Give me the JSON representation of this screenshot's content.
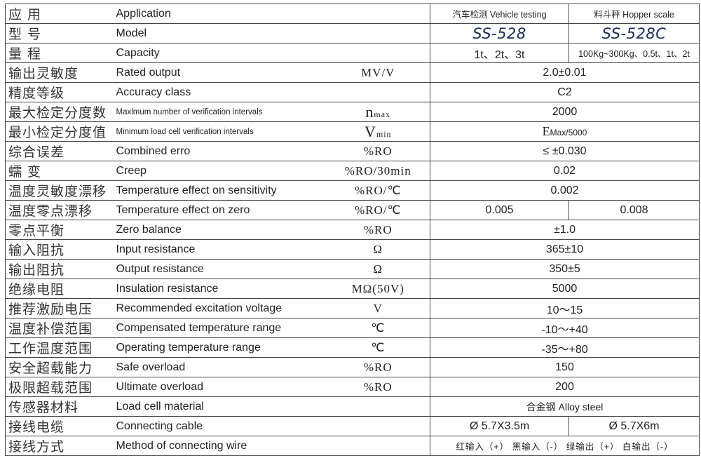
{
  "rows": [
    {
      "cn": "应  用",
      "en": "Application",
      "unit": "",
      "values": [
        "汽车检测 Vehicle testing",
        "料斗秤 Hopper scale"
      ]
    },
    {
      "cn": "型  号",
      "en": "Model",
      "unit": "",
      "values": [
        "SS-528",
        "SS-528C"
      ]
    },
    {
      "cn": "量  程",
      "en": "Capacity",
      "unit": "",
      "values": [
        "1t、2t、3t",
        "100Kg~300Kg、0.5t、1t、2t"
      ]
    },
    {
      "cn": "输出灵敏度",
      "en": "Rated output",
      "unit": "MV/V",
      "values": [
        "2.0±0.01"
      ]
    },
    {
      "cn": "精度等级",
      "en": "Accuracy class",
      "unit": "",
      "values": [
        "C2"
      ]
    },
    {
      "cn": "最大检定分度数",
      "en": "Maxlmum number of verification intervals",
      "unit": "n",
      "unit_sub": "max",
      "values": [
        "2000"
      ]
    },
    {
      "cn": "最小检定分度值",
      "en": "Minimum load cell verification intervals",
      "unit": "V",
      "unit_sub": "min",
      "values": [
        "E",
        "Max/5000"
      ]
    },
    {
      "cn": "综合误差",
      "en": "Combined erro",
      "unit": "%RO",
      "values": [
        "≤ ±0.030"
      ]
    },
    {
      "cn": "蠕  变",
      "en": "Creep",
      "unit": "%RO/30min",
      "values": [
        "0.02"
      ]
    },
    {
      "cn": "温度灵敏度漂移",
      "en": "Temperature effect on sensitivity",
      "unit": "%RO/℃",
      "values": [
        "0.002"
      ]
    },
    {
      "cn": "温度零点漂移",
      "en": "Temperature effect on zero",
      "unit": "%RO/℃",
      "values": [
        "0.005",
        "0.008"
      ]
    },
    {
      "cn": "零点平衡",
      "en": "Zero balance",
      "unit": "%RO",
      "values": [
        "±1.0"
      ]
    },
    {
      "cn": "输入阻抗",
      "en": "Input resistance",
      "unit": "Ω",
      "values": [
        "365±10"
      ]
    },
    {
      "cn": "输出阻抗",
      "en": "Output resistance",
      "unit": "Ω",
      "values": [
        "350±5"
      ]
    },
    {
      "cn": "绝缘电阻",
      "en": "Insulation resistance",
      "unit": "MΩ(50V)",
      "values": [
        "5000"
      ]
    },
    {
      "cn": "推荐激励电压",
      "en": "Recommended excitation voltage",
      "unit": "V",
      "values": [
        "10～15"
      ]
    },
    {
      "cn": "温度补偿范围",
      "en": "Compensated temperature range",
      "unit": "℃",
      "values": [
        "-10～+40"
      ]
    },
    {
      "cn": "工作温度范围",
      "en": "Operating temperature range",
      "unit": "℃",
      "values": [
        "-35～+80"
      ]
    },
    {
      "cn": "安全超载能力",
      "en": "Safe overload",
      "unit": "%RO",
      "values": [
        "150"
      ]
    },
    {
      "cn": "极限超载范围",
      "en": "Ultimate overload",
      "unit": "%RO",
      "values": [
        "200"
      ]
    },
    {
      "cn": "传感器材料",
      "en": "Load cell material",
      "unit": "",
      "values": [
        "合金钢 Alloy steel"
      ]
    },
    {
      "cn": "接线电缆",
      "en": "Connecting cable",
      "unit": "",
      "values": [
        "Ø 5.7X3.5m",
        "Ø 5.7X6m"
      ]
    },
    {
      "cn": "接线方式",
      "en": "Method of connecting wire",
      "unit": "",
      "values": [
        "红输入（+） 黑输入（-） 绿输出（+） 白输出（-）"
      ]
    }
  ]
}
